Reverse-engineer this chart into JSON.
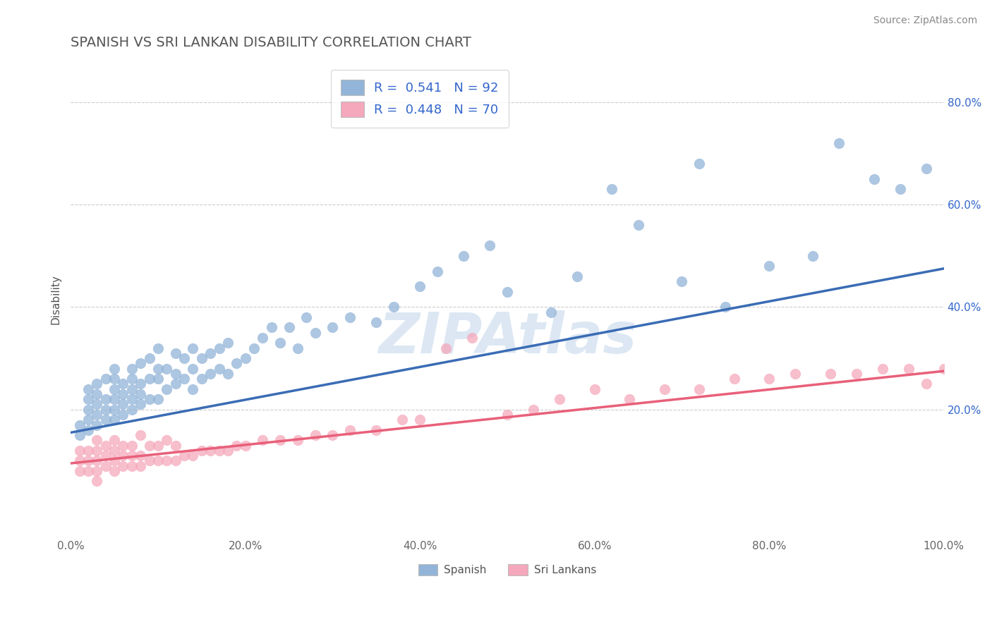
{
  "title": "SPANISH VS SRI LANKAN DISABILITY CORRELATION CHART",
  "source": "Source: ZipAtlas.com",
  "ylabel": "Disability",
  "xlim": [
    0.0,
    1.0
  ],
  "ylim": [
    -0.05,
    0.88
  ],
  "xticks": [
    0.0,
    0.2,
    0.4,
    0.6,
    0.8,
    1.0
  ],
  "yticks_right": [
    0.2,
    0.4,
    0.6,
    0.8
  ],
  "spanish_R": 0.541,
  "spanish_N": 92,
  "srilankan_R": 0.448,
  "srilankan_N": 70,
  "spanish_color": "#92B4D8",
  "srilankan_color": "#F5A8BB",
  "spanish_line_color": "#3A6CB5",
  "srilankan_line_color": "#E8607A",
  "watermark": "ZIPAtlas",
  "watermark_color": "#C5D8EC",
  "background_color": "#FFFFFF",
  "grid_color": "#CCCCCC",
  "title_color": "#555555",
  "legend_text_color": "#3366CC",
  "legend_label_color": "#555555",
  "spanish_scatter_x": [
    0.01,
    0.01,
    0.02,
    0.02,
    0.02,
    0.02,
    0.02,
    0.03,
    0.03,
    0.03,
    0.03,
    0.03,
    0.04,
    0.04,
    0.04,
    0.04,
    0.05,
    0.05,
    0.05,
    0.05,
    0.05,
    0.05,
    0.06,
    0.06,
    0.06,
    0.06,
    0.07,
    0.07,
    0.07,
    0.07,
    0.07,
    0.08,
    0.08,
    0.08,
    0.08,
    0.09,
    0.09,
    0.09,
    0.1,
    0.1,
    0.1,
    0.1,
    0.11,
    0.11,
    0.12,
    0.12,
    0.12,
    0.13,
    0.13,
    0.14,
    0.14,
    0.14,
    0.15,
    0.15,
    0.16,
    0.16,
    0.17,
    0.17,
    0.18,
    0.18,
    0.19,
    0.2,
    0.21,
    0.22,
    0.23,
    0.24,
    0.25,
    0.26,
    0.27,
    0.28,
    0.3,
    0.32,
    0.35,
    0.37,
    0.4,
    0.42,
    0.45,
    0.48,
    0.5,
    0.55,
    0.58,
    0.62,
    0.65,
    0.7,
    0.72,
    0.75,
    0.8,
    0.85,
    0.88,
    0.92,
    0.95,
    0.98
  ],
  "spanish_scatter_y": [
    0.15,
    0.17,
    0.16,
    0.18,
    0.2,
    0.22,
    0.24,
    0.17,
    0.19,
    0.21,
    0.23,
    0.25,
    0.18,
    0.2,
    0.22,
    0.26,
    0.18,
    0.2,
    0.22,
    0.24,
    0.26,
    0.28,
    0.19,
    0.21,
    0.23,
    0.25,
    0.2,
    0.22,
    0.24,
    0.26,
    0.28,
    0.21,
    0.23,
    0.25,
    0.29,
    0.22,
    0.26,
    0.3,
    0.22,
    0.26,
    0.28,
    0.32,
    0.24,
    0.28,
    0.25,
    0.27,
    0.31,
    0.26,
    0.3,
    0.24,
    0.28,
    0.32,
    0.26,
    0.3,
    0.27,
    0.31,
    0.28,
    0.32,
    0.27,
    0.33,
    0.29,
    0.3,
    0.32,
    0.34,
    0.36,
    0.33,
    0.36,
    0.32,
    0.38,
    0.35,
    0.36,
    0.38,
    0.37,
    0.4,
    0.44,
    0.47,
    0.5,
    0.52,
    0.43,
    0.39,
    0.46,
    0.63,
    0.56,
    0.45,
    0.68,
    0.4,
    0.48,
    0.5,
    0.72,
    0.65,
    0.63,
    0.67
  ],
  "srilankan_scatter_x": [
    0.01,
    0.01,
    0.01,
    0.02,
    0.02,
    0.02,
    0.03,
    0.03,
    0.03,
    0.03,
    0.03,
    0.04,
    0.04,
    0.04,
    0.05,
    0.05,
    0.05,
    0.05,
    0.06,
    0.06,
    0.06,
    0.07,
    0.07,
    0.07,
    0.08,
    0.08,
    0.08,
    0.09,
    0.09,
    0.1,
    0.1,
    0.11,
    0.11,
    0.12,
    0.12,
    0.13,
    0.14,
    0.15,
    0.16,
    0.17,
    0.18,
    0.19,
    0.2,
    0.22,
    0.24,
    0.26,
    0.28,
    0.3,
    0.32,
    0.35,
    0.38,
    0.4,
    0.43,
    0.46,
    0.5,
    0.53,
    0.56,
    0.6,
    0.64,
    0.68,
    0.72,
    0.76,
    0.8,
    0.83,
    0.87,
    0.9,
    0.93,
    0.96,
    0.98,
    1.0
  ],
  "srilankan_scatter_y": [
    0.08,
    0.1,
    0.12,
    0.08,
    0.1,
    0.12,
    0.08,
    0.1,
    0.12,
    0.14,
    0.06,
    0.09,
    0.11,
    0.13,
    0.08,
    0.1,
    0.12,
    0.14,
    0.09,
    0.11,
    0.13,
    0.09,
    0.11,
    0.13,
    0.09,
    0.11,
    0.15,
    0.1,
    0.13,
    0.1,
    0.13,
    0.1,
    0.14,
    0.1,
    0.13,
    0.11,
    0.11,
    0.12,
    0.12,
    0.12,
    0.12,
    0.13,
    0.13,
    0.14,
    0.14,
    0.14,
    0.15,
    0.15,
    0.16,
    0.16,
    0.18,
    0.18,
    0.32,
    0.34,
    0.19,
    0.2,
    0.22,
    0.24,
    0.22,
    0.24,
    0.24,
    0.26,
    0.26,
    0.27,
    0.27,
    0.27,
    0.28,
    0.28,
    0.25,
    0.28
  ],
  "spanish_line_x0": 0.0,
  "spanish_line_y0": 0.155,
  "spanish_line_x1": 1.0,
  "spanish_line_y1": 0.475,
  "srilankan_line_x0": 0.0,
  "srilankan_line_y0": 0.095,
  "srilankan_line_x1": 1.0,
  "srilankan_line_y1": 0.275
}
